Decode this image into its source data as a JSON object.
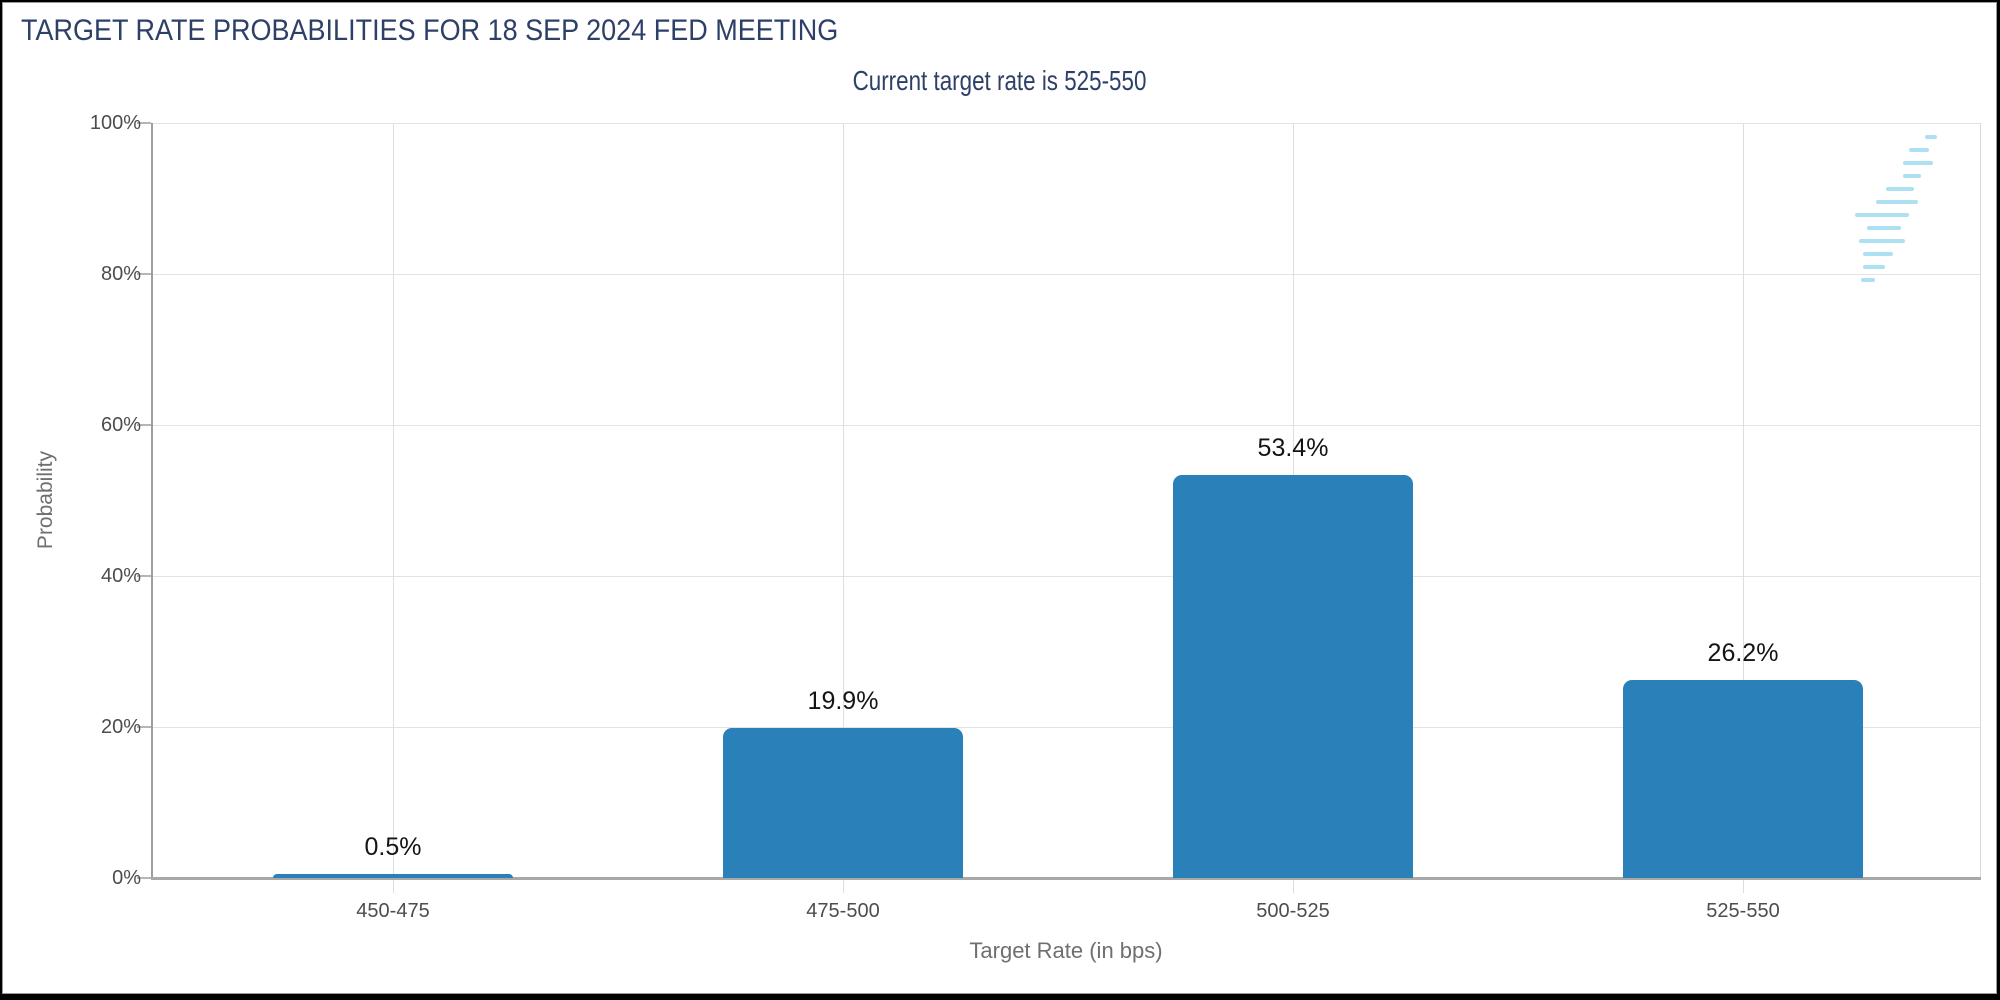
{
  "header": {
    "title": "TARGET RATE PROBABILITIES FOR 18 SEP 2024 FED MEETING",
    "subtitle": "Current target rate is 525-550"
  },
  "logo": {
    "letter": "Q"
  },
  "colors": {
    "title_navy": "#2e4068",
    "bar_blue": "#2a80b9",
    "tick_text": "#4d4d4d",
    "axis_title_text": "#6f6f6f",
    "gridline": "#e3e3e3",
    "axis_line": "#a8a8a8",
    "watermark_gray": "#c8c8c8",
    "watermark_blue": "#ade0f3"
  },
  "chart_data": {
    "type": "bar",
    "title": "TARGET RATE PROBABILITIES FOR 18 SEP 2024 FED MEETING",
    "subtitle": "Current target rate is 525-550",
    "categories": [
      "450-475",
      "475-500",
      "500-525",
      "525-550"
    ],
    "values": [
      0.5,
      19.9,
      53.4,
      26.2
    ],
    "bar_labels": [
      "0.5%",
      "19.9%",
      "53.4%",
      "26.2%"
    ],
    "xlabel": "Target Rate (in bps)",
    "ylabel": "Probability",
    "ylim": [
      0,
      100
    ],
    "yticks": [
      0,
      20,
      40,
      60,
      80,
      100
    ],
    "ytick_labels": [
      "0%",
      "20%",
      "40%",
      "60%",
      "80%",
      "100%"
    ],
    "grid": true,
    "legend": false,
    "bar_color": "#2a80b9"
  }
}
